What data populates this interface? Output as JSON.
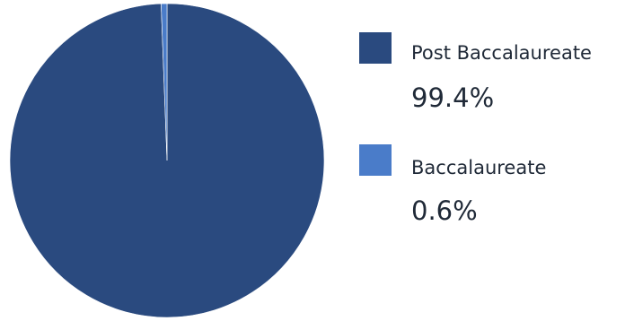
{
  "chart_data": {
    "type": "pie",
    "slices": [
      {
        "label": "Post Baccalaureate",
        "value": 99.4,
        "value_label": "99.4%",
        "color": "#2a4a7f"
      },
      {
        "label": "Baccalaureate",
        "value": 0.6,
        "value_label": "0.6%",
        "color": "#4a7cc9"
      }
    ],
    "legend_position": "right",
    "start_angle": "top",
    "direction": "clockwise"
  }
}
